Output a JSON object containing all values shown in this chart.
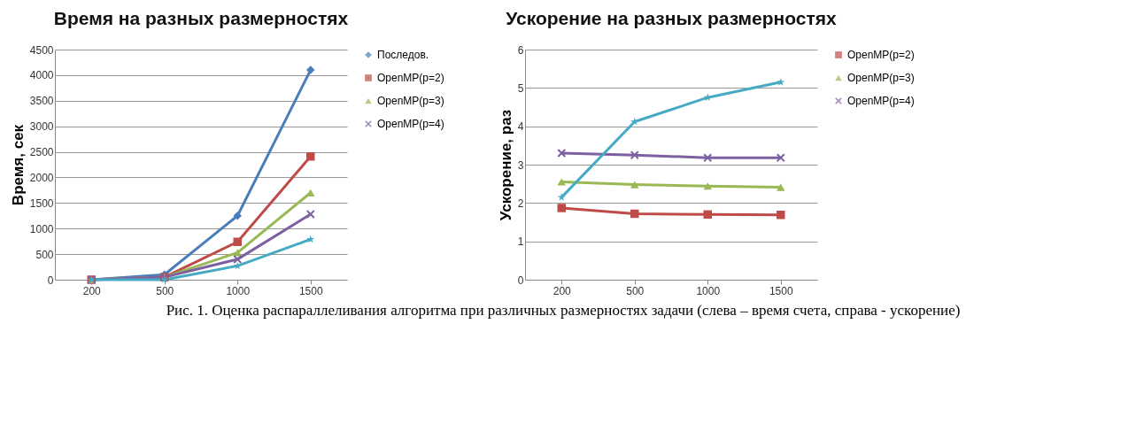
{
  "chart_data": [
    {
      "type": "line",
      "title": "Время на разных размерностях",
      "ylabel": "Время, сек",
      "categories": [
        "200",
        "500",
        "1000",
        "1500"
      ],
      "ylim": [
        0,
        4500
      ],
      "yticks": [
        0,
        500,
        1000,
        1500,
        2000,
        2500,
        3000,
        3500,
        4000,
        4500
      ],
      "grid": "y",
      "legend": "right",
      "line_style": "solid",
      "series": [
        {
          "name": "Последов.",
          "color": "#4a7ebb",
          "marker": "diamond",
          "values": [
            0,
            100,
            1250,
            4100
          ]
        },
        {
          "name": "OpenMP(p=2)",
          "color": "#be4b48",
          "marker": "square",
          "values": [
            0,
            50,
            740,
            2410
          ]
        },
        {
          "name": "OpenMP(p=3)",
          "color": "#98b954",
          "marker": "triangle",
          "values": [
            0,
            50,
            530,
            1700
          ]
        },
        {
          "name": "OpenMP(p=4)",
          "color": "#7d60a0",
          "marker": "cross",
          "values": [
            0,
            50,
            400,
            1280
          ]
        },
        {
          "color": "#46aac5",
          "marker": "star",
          "values": [
            0,
            0,
            270,
            790
          ]
        }
      ]
    },
    {
      "type": "line",
      "title": "Ускорение на разных размерностях",
      "ylabel": "Ускорение, раз",
      "categories": [
        "200",
        "500",
        "1000",
        "1500"
      ],
      "ylim": [
        0,
        6
      ],
      "yticks": [
        0,
        1,
        2,
        3,
        4,
        5,
        6
      ],
      "grid": "y",
      "legend": "right",
      "line_style": "solid",
      "annotations": [
        "Рис. 1. Оценка распараллеливания алгоритма при различных размерностях задачи (слева – время счета, справа - ускорение)"
      ],
      "series": [
        {
          "name": "OpenMP(p=2)",
          "color": "#be4b48",
          "marker": "square",
          "values": [
            1.87,
            1.72,
            1.7,
            1.69
          ]
        },
        {
          "name": "OpenMP(p=3)",
          "color": "#98b954",
          "marker": "triangle",
          "values": [
            2.55,
            2.48,
            2.44,
            2.41
          ]
        },
        {
          "name": "OpenMP(p=4)",
          "color": "#7d60a0",
          "marker": "cross",
          "values": [
            3.3,
            3.25,
            3.18,
            3.18
          ]
        },
        {
          "color": "#46aac5",
          "marker": "star",
          "values": [
            2.15,
            4.12,
            4.75,
            5.15
          ]
        }
      ]
    }
  ]
}
